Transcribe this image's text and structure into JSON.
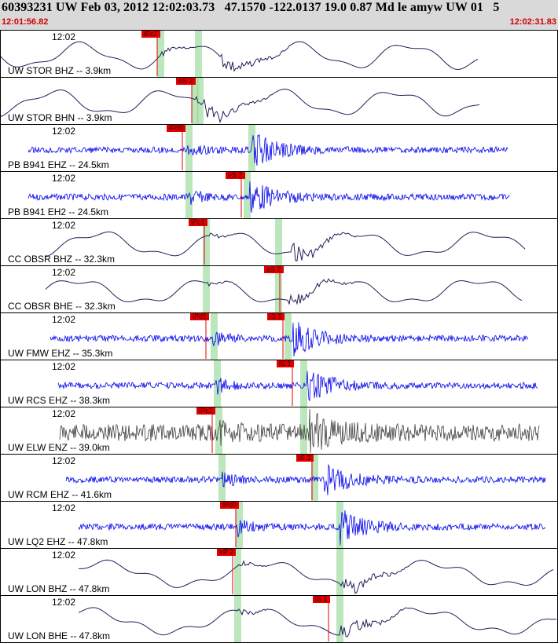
{
  "header": {
    "title": "60393231 UW Feb 03, 2012 12:02:03.73   47.1570 -122.0137 19.0 0.87 Md le amyw UW 01   5",
    "start_time": "12:01:56.82",
    "end_time": "12:02:31.83"
  },
  "colors": {
    "trace_broadband": "#20205a",
    "trace_short_period": "#0000ee",
    "trace_enz": "#404040",
    "pick": "#e00000",
    "band": "#9fdc9f"
  },
  "panels": [
    {
      "label": "UW STOR BHZ -- 3.9km",
      "tick": "12:02",
      "picks": [
        "iPc1"
      ],
      "trace": "broadband"
    },
    {
      "label": "UW STOR BHN -- 3.9km",
      "tick": "",
      "picks": [
        "eS 2"
      ],
      "trace": "broadband"
    },
    {
      "label": "PB B941 EHZ -- 24.5km",
      "tick": "12:02",
      "picks": [
        "iPd0"
      ],
      "trace": "short"
    },
    {
      "label": "PB B941 EH2 -- 24.5km",
      "tick": "12:02",
      "picks": [
        "eS 2"
      ],
      "trace": "short"
    },
    {
      "label": "CC OBSR BHZ -- 32.3km",
      "tick": "12:02",
      "picks": [
        "iPc1"
      ],
      "trace": "broadband"
    },
    {
      "label": "CC OBSR BHE -- 32.3km",
      "tick": "12:02",
      "picks": [
        "eS 2"
      ],
      "trace": "broadband"
    },
    {
      "label": "UW FMW EHZ -- 35.3km",
      "tick": "12:02",
      "picks": [
        "iPd1",
        "iS 1"
      ],
      "trace": "short"
    },
    {
      "label": "UW RCS EHZ -- 38.3km",
      "tick": "12:02",
      "picks": [
        "iS 1"
      ],
      "trace": "short"
    },
    {
      "label": "UW ELW ENZ -- 39.0km",
      "tick": "12:02",
      "picks": [
        "iPc1"
      ],
      "trace": "enz"
    },
    {
      "label": "UW RCM EHZ -- 41.6km",
      "tick": "12:02",
      "picks": [
        "iS 1"
      ],
      "trace": "short"
    },
    {
      "label": "UW LQ2 EHZ -- 47.8km",
      "tick": "12:02",
      "picks": [
        "iPc0"
      ],
      "trace": "short"
    },
    {
      "label": "UW LON BHZ -- 47.8km",
      "tick": "12:02",
      "picks": [
        "eP 2"
      ],
      "trace": "broadband"
    },
    {
      "label": "UW LON BHE -- 47.8km",
      "tick": "12:02",
      "picks": [
        "iS 1"
      ],
      "trace": "broadband"
    }
  ]
}
